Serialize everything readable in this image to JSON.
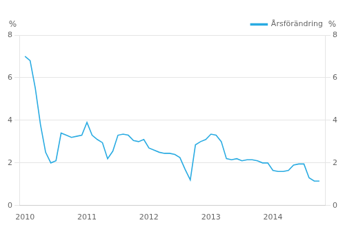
{
  "chart_data": {
    "type": "line",
    "x": [
      2010.0,
      2010.083,
      2010.167,
      2010.25,
      2010.333,
      2010.417,
      2010.5,
      2010.583,
      2010.667,
      2010.75,
      2010.833,
      2010.917,
      2011.0,
      2011.083,
      2011.167,
      2011.25,
      2011.333,
      2011.417,
      2011.5,
      2011.583,
      2011.667,
      2011.75,
      2011.833,
      2011.917,
      2012.0,
      2012.083,
      2012.167,
      2012.25,
      2012.333,
      2012.417,
      2012.5,
      2012.583,
      2012.667,
      2012.75,
      2012.833,
      2012.917,
      2013.0,
      2013.083,
      2013.167,
      2013.25,
      2013.333,
      2013.417,
      2013.5,
      2013.583,
      2013.667,
      2013.75,
      2013.833,
      2013.917,
      2014.0,
      2014.083,
      2014.167,
      2014.25,
      2014.333,
      2014.417,
      2014.5,
      2014.583,
      2014.667,
      2014.75
    ],
    "series": [
      {
        "name": "Årsförändring",
        "color": "#29ABE2",
        "values": [
          7.0,
          6.8,
          5.5,
          3.8,
          2.5,
          2.0,
          2.1,
          3.4,
          3.3,
          3.2,
          3.25,
          3.3,
          3.9,
          3.3,
          3.1,
          2.95,
          2.2,
          2.55,
          3.3,
          3.35,
          3.3,
          3.05,
          3.0,
          3.1,
          2.7,
          2.6,
          2.5,
          2.45,
          2.45,
          2.4,
          2.25,
          1.7,
          1.2,
          2.85,
          3.0,
          3.1,
          3.35,
          3.3,
          3.0,
          2.2,
          2.15,
          2.2,
          2.1,
          2.15,
          2.15,
          2.1,
          2.0,
          2.0,
          1.65,
          1.6,
          1.6,
          1.65,
          1.9,
          1.95,
          1.95,
          1.3,
          1.15,
          1.15
        ]
      }
    ],
    "xlim": [
      2009.92,
      2014.84
    ],
    "xticks": [
      2010,
      2011,
      2012,
      2013,
      2014
    ],
    "ylim": [
      0,
      8
    ],
    "yticks": [
      0,
      2,
      4,
      6,
      8
    ],
    "y2lim": [
      0,
      8
    ],
    "y2ticks": [
      0,
      2,
      4,
      6,
      8
    ],
    "ylabel": "%",
    "y2label": "%",
    "grid": "y",
    "legend": "upper right"
  }
}
